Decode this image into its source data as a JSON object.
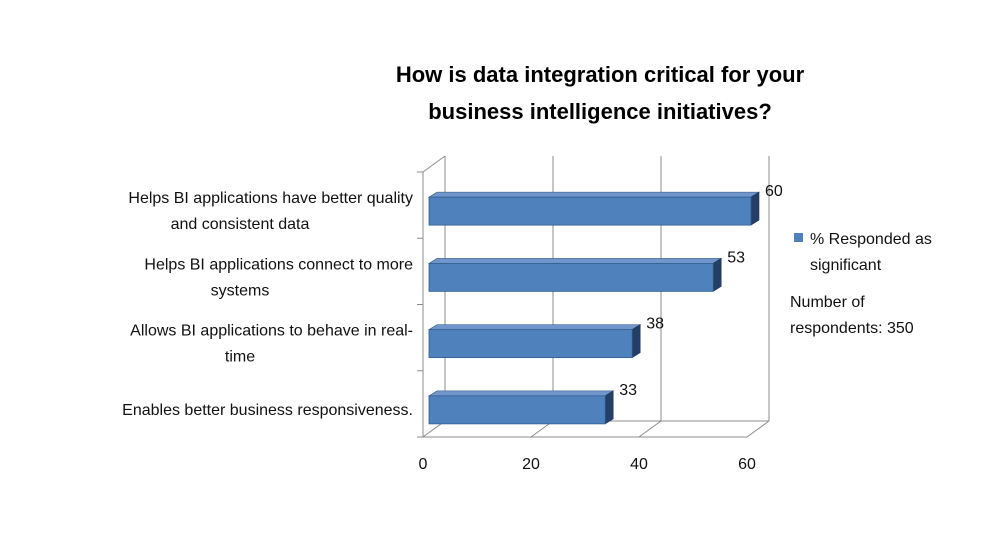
{
  "chart_data": {
    "type": "bar",
    "orientation": "horizontal",
    "title": [
      "How is data integration critical for your",
      "business intelligence initiatives?"
    ],
    "categories": [
      [
        "Helps BI applications have better quality",
        "and consistent data"
      ],
      [
        "Helps BI applications connect to more",
        "systems"
      ],
      [
        "Allows BI applications to behave in real-",
        "time"
      ],
      [
        "Enables better business responsiveness."
      ]
    ],
    "series": [
      {
        "name": "% Responded as significant",
        "values": [
          60,
          53,
          38,
          33
        ],
        "color": "#4F81BD"
      }
    ],
    "xlim": [
      0,
      60
    ],
    "xticks": [
      "0",
      "20",
      "40",
      "60"
    ],
    "grid": "vertical",
    "legend": {
      "position": "right",
      "label_lines": [
        "% Responded as",
        "significant"
      ],
      "note_lines": [
        "Number of",
        "respondents: 350"
      ]
    }
  }
}
